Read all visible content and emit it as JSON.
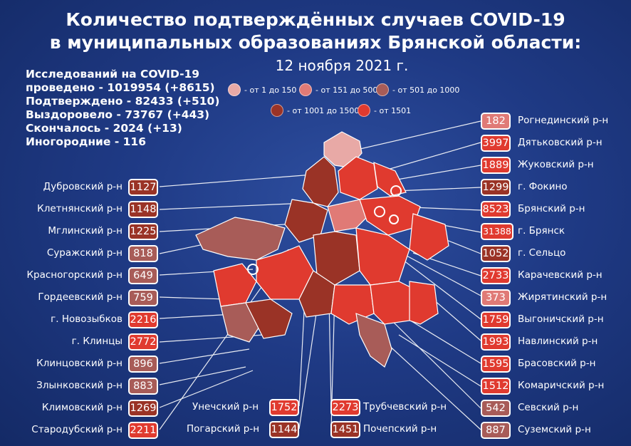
{
  "title_line1": "Количество подтверждённых случаев COVID-19",
  "title_line2": "в муниципальных образованиях Брянской области:",
  "date": "12 ноября 2021 г.",
  "stats": {
    "tests_line1": "Исследований на COVID-19",
    "tests_line2": "проведено - 1019954 (+8615)",
    "confirmed": "Подтверждено - 82433 (+510)",
    "recovered": "Выздоровело - 73767 (+443)",
    "died": "Скончалось - 2024 (+13)",
    "nonresident": "Иногородние - 116"
  },
  "legend": [
    {
      "label": "- от 1 до 150",
      "color": "#e8a9a6"
    },
    {
      "label": "- от 151 до 500",
      "color": "#e07a76"
    },
    {
      "label": "- от 501 до 1000",
      "color": "#a85c58"
    },
    {
      "label": "- от 1001 до 1500",
      "color": "#9a3326"
    },
    {
      "label": "- от 1501",
      "color": "#e03a2f"
    }
  ],
  "districts_left": [
    {
      "name": "Дубровский р-н",
      "value": "1127",
      "color": "#9a3326"
    },
    {
      "name": "Клетнянский р-н",
      "value": "1148",
      "color": "#9a3326"
    },
    {
      "name": "Мглинский р-н",
      "value": "1225",
      "color": "#9a3326"
    },
    {
      "name": "Суражский р-н",
      "value": "818",
      "color": "#a85c58"
    },
    {
      "name": "Красногорский р-н",
      "value": "649",
      "color": "#a85c58"
    },
    {
      "name": "Гордеевский р-н",
      "value": "759",
      "color": "#a85c58"
    },
    {
      "name": "г. Новозыбков",
      "value": "2216",
      "color": "#e03a2f"
    },
    {
      "name": "г. Клинцы",
      "value": "2772",
      "color": "#e03a2f"
    },
    {
      "name": "Клинцовский р-н",
      "value": "896",
      "color": "#a85c58"
    },
    {
      "name": "Злынковский р-н",
      "value": "883",
      "color": "#a85c58"
    },
    {
      "name": "Климовский  р-н",
      "value": "1269",
      "color": "#9a3326"
    },
    {
      "name": "Стародубский р-н",
      "value": "2211",
      "color": "#e03a2f"
    }
  ],
  "districts_right": [
    {
      "name": "Рогнединский р-н",
      "value": "182",
      "color": "#e07a76"
    },
    {
      "name": "Дятьковский р-н",
      "value": "3997",
      "color": "#e03a2f"
    },
    {
      "name": "Жуковский р-н",
      "value": "1889",
      "color": "#e03a2f"
    },
    {
      "name": "г. Фокино",
      "value": "1299",
      "color": "#9a3326"
    },
    {
      "name": "Брянский р-н",
      "value": "8523",
      "color": "#e03a2f"
    },
    {
      "name": "г. Брянск",
      "value": "31388",
      "color": "#e03a2f"
    },
    {
      "name": "г. Сельцо",
      "value": "1052",
      "color": "#9a3326"
    },
    {
      "name": "Карачевский р-н",
      "value": "2733",
      "color": "#e03a2f"
    },
    {
      "name": "Жирятинский р-н",
      "value": "373",
      "color": "#e07a76"
    },
    {
      "name": "Выгоничский р-н",
      "value": "1759",
      "color": "#e03a2f"
    },
    {
      "name": "Навлинский р-н",
      "value": "1993",
      "color": "#e03a2f"
    },
    {
      "name": "Брасовский р-н",
      "value": "1595",
      "color": "#e03a2f"
    },
    {
      "name": "Комаричский р-н",
      "value": "1512",
      "color": "#e03a2f"
    },
    {
      "name": "Севский р-н",
      "value": "542",
      "color": "#a85c58"
    },
    {
      "name": "Суземский р-н",
      "value": "887",
      "color": "#a85c58"
    }
  ],
  "districts_bottom": [
    {
      "name": "Унечский р-н",
      "value": "1752",
      "color": "#e03a2f"
    },
    {
      "name": "Погарский р-н",
      "value": "1144",
      "color": "#9a3326"
    },
    {
      "name": "Трубчевский р-н",
      "value": "2273",
      "color": "#e03a2f"
    },
    {
      "name": "Почепский р-н",
      "value": "1451",
      "color": "#9a3326"
    }
  ]
}
